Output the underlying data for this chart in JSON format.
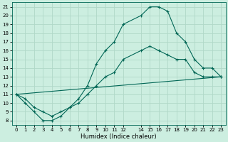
{
  "title": "",
  "xlabel": "Humidex (Indice chaleur)",
  "xlim": [
    -0.5,
    23.5
  ],
  "ylim": [
    7.5,
    21.5
  ],
  "xticks": [
    0,
    1,
    2,
    3,
    4,
    5,
    6,
    7,
    8,
    9,
    10,
    11,
    12,
    14,
    15,
    16,
    17,
    18,
    19,
    20,
    21,
    22,
    23
  ],
  "yticks": [
    8,
    9,
    10,
    11,
    12,
    13,
    14,
    15,
    16,
    17,
    18,
    19,
    20,
    21
  ],
  "bg_color": "#cceee0",
  "grid_color": "#b0d8c8",
  "line_color": "#006655",
  "line1_x": [
    0,
    1,
    2,
    3,
    4,
    5,
    6,
    7,
    8,
    9,
    10,
    11,
    12,
    14,
    15,
    16,
    17,
    18,
    19,
    20,
    21,
    22,
    23
  ],
  "line1_y": [
    11,
    10,
    9,
    8,
    8,
    8.5,
    9.5,
    10.5,
    12,
    14.5,
    16,
    17,
    19,
    20,
    21,
    21,
    20.5,
    18,
    17,
    15,
    14,
    14,
    13
  ],
  "line2_x": [
    0,
    1,
    2,
    3,
    4,
    5,
    6,
    7,
    8,
    9,
    10,
    11,
    12,
    14,
    15,
    16,
    17,
    18,
    19,
    20,
    21,
    22,
    23
  ],
  "line2_y": [
    11,
    10.5,
    9.5,
    9,
    8.5,
    9,
    9.5,
    10,
    11,
    12,
    13,
    13.5,
    15,
    16,
    16.5,
    16,
    15.5,
    15,
    15,
    13.5,
    13,
    13,
    13
  ],
  "line3_x": [
    0,
    23
  ],
  "line3_y": [
    11,
    13
  ],
  "xlabel_fontsize": 6,
  "tick_fontsize": 5
}
